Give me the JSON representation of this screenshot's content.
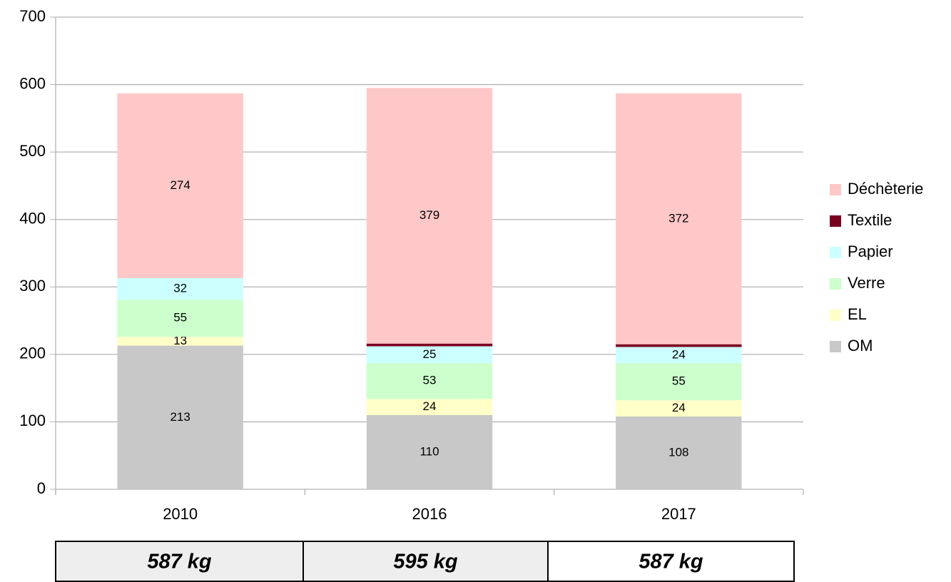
{
  "chart_data": {
    "type": "stacked_bar",
    "categories": [
      "2010",
      "2016",
      "2017"
    ],
    "series": [
      {
        "name": "OM",
        "color": "#c8c8c8",
        "values": [
          213,
          110,
          108
        ]
      },
      {
        "name": "EL",
        "color": "#ffffc8",
        "values": [
          13,
          24,
          24
        ]
      },
      {
        "name": "Verre",
        "color": "#ccffcc",
        "values": [
          55,
          53,
          55
        ]
      },
      {
        "name": "Papier",
        "color": "#ccffff",
        "values": [
          32,
          25,
          24
        ]
      },
      {
        "name": "Textile",
        "color": "#7b0020",
        "values": [
          0,
          4,
          4
        ]
      },
      {
        "name": "Déchèterie",
        "color": "#ffc8c8",
        "values": [
          274,
          379,
          372
        ]
      }
    ],
    "ylim": [
      0,
      700
    ],
    "yticks": [
      0,
      100,
      200,
      300,
      400,
      500,
      600,
      700
    ],
    "grid": true,
    "legend": "right"
  },
  "totals_table": {
    "cells": [
      "587 kg",
      "595 kg",
      "587 kg"
    ]
  }
}
